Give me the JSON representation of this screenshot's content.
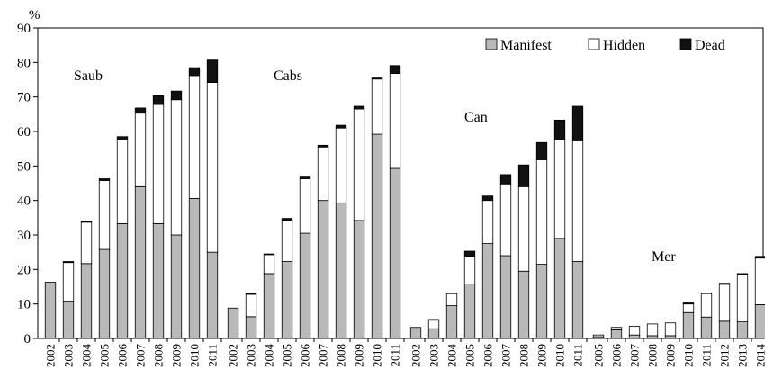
{
  "chart_data": {
    "type": "bar",
    "stacked": true,
    "y_unit_label": "%",
    "ylim": [
      0,
      90
    ],
    "yticks": [
      0,
      10,
      20,
      30,
      40,
      50,
      60,
      70,
      80,
      90
    ],
    "grid": false,
    "legend_position": "top-right",
    "series": [
      {
        "name": "Manifest",
        "color": "#b9b9b9"
      },
      {
        "name": "Hidden",
        "color": "#ffffff"
      },
      {
        "name": "Dead",
        "color": "#111111"
      }
    ],
    "groups": [
      {
        "label": "Saub",
        "categories": [
          "2002",
          "2003",
          "2004",
          "2005",
          "2006",
          "2007",
          "2008",
          "2009",
          "2010",
          "2011"
        ],
        "manifest": [
          16.3,
          10.8,
          21.7,
          25.8,
          33.3,
          44.0,
          33.3,
          30.0,
          40.6,
          25.0
        ],
        "hidden": [
          0.0,
          11.2,
          12.0,
          20.0,
          24.2,
          21.3,
          34.5,
          39.2,
          35.6,
          49.2
        ],
        "dead": [
          0.0,
          0.3,
          0.3,
          0.5,
          1.0,
          1.5,
          2.6,
          2.5,
          2.3,
          6.5
        ]
      },
      {
        "label": "Cabs",
        "categories": [
          "2002",
          "2003",
          "2004",
          "2005",
          "2006",
          "2007",
          "2008",
          "2009",
          "2010",
          "2011"
        ],
        "manifest": [
          8.8,
          6.3,
          18.8,
          22.3,
          30.5,
          40.0,
          39.3,
          34.2,
          59.2,
          49.3
        ],
        "hidden": [
          0.0,
          6.5,
          5.5,
          12.0,
          15.8,
          15.5,
          21.7,
          32.3,
          16.0,
          27.5
        ],
        "dead": [
          0.0,
          0.2,
          0.2,
          0.5,
          0.5,
          0.5,
          0.8,
          0.8,
          0.3,
          2.3
        ]
      },
      {
        "label": "Can",
        "categories": [
          "2002",
          "2003",
          "2004",
          "2005",
          "2006",
          "2007",
          "2008",
          "2009",
          "2010",
          "2011"
        ],
        "manifest": [
          3.2,
          2.8,
          9.5,
          15.8,
          27.5,
          24.0,
          19.5,
          21.5,
          29.0,
          22.3
        ],
        "hidden": [
          0.0,
          2.5,
          3.5,
          8.0,
          12.5,
          20.8,
          24.5,
          30.3,
          28.8,
          35.0
        ],
        "dead": [
          0.0,
          0.2,
          0.2,
          1.5,
          1.3,
          2.7,
          6.3,
          5.0,
          5.5,
          10.0
        ]
      },
      {
        "label": "Mer",
        "categories": [
          "2005",
          "2006",
          "2007",
          "2008",
          "2009",
          "2010",
          "2011",
          "2012",
          "2013",
          "2014"
        ],
        "manifest": [
          0.5,
          2.5,
          1.0,
          0.8,
          0.8,
          7.5,
          6.2,
          5.0,
          4.8,
          9.8
        ],
        "hidden": [
          0.5,
          0.7,
          2.5,
          3.4,
          3.7,
          2.5,
          6.8,
          10.7,
          13.7,
          13.5
        ],
        "dead": [
          0.0,
          0.0,
          0.0,
          0.0,
          0.0,
          0.3,
          0.2,
          0.3,
          0.3,
          0.5
        ]
      }
    ]
  }
}
